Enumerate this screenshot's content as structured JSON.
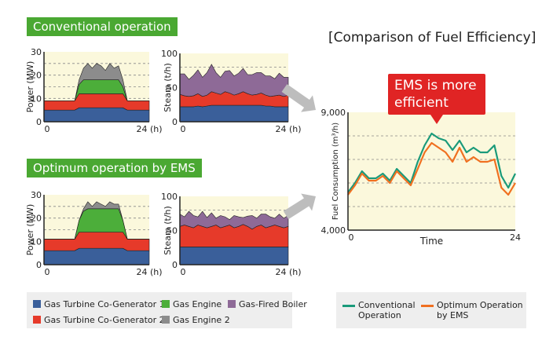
{
  "headers": {
    "conventional": "Conventional operation",
    "optimum": "Optimum operation by EMS"
  },
  "comparison": {
    "title": "[Comparison of Fuel Efficiency]",
    "callout": [
      "EMS is more",
      "efficient"
    ]
  },
  "colors": {
    "gt1": "#3a5f9a",
    "gt2": "#e63a2a",
    "engine": "#4cae3a",
    "engine2": "#8c8c8c",
    "boiler": "#8e6a97",
    "conventional": "#1a9a7a",
    "optimum": "#f07020",
    "plot_bg": "#fbf8dc"
  },
  "legend": {
    "gt1": "Gas Turbine Co-Generator 1",
    "gt2": "Gas Turbine Co-Generator 2",
    "engine": "Gas Engine",
    "engine2": "Gas Engine 2",
    "boiler": "Gas-Fired Boiler",
    "conventional": "Conventional Operation",
    "optimum": "Optimum Operation by EMS"
  },
  "chart_data": [
    {
      "id": "conv-power",
      "type": "area",
      "ylabel": "Power (MW)",
      "ylim": [
        0,
        30
      ],
      "yticks": [
        "30",
        "20",
        "10",
        "0"
      ],
      "xticks": [
        "0",
        "24 (h)"
      ],
      "xlim": [
        0,
        24
      ],
      "x": [
        0,
        1,
        2,
        3,
        4,
        5,
        6,
        7,
        8,
        9,
        10,
        11,
        12,
        13,
        14,
        15,
        16,
        17,
        18,
        19,
        20,
        21,
        22,
        23,
        24
      ],
      "series": [
        {
          "key": "gt1",
          "values": [
            5,
            5,
            5,
            5,
            5,
            5,
            5,
            5,
            6,
            6,
            6,
            6,
            6,
            6,
            6,
            6,
            6,
            6,
            6,
            5,
            5,
            5,
            5,
            5,
            5
          ]
        },
        {
          "key": "gt2",
          "values": [
            4,
            4,
            4,
            4,
            4,
            4,
            4,
            4,
            6,
            6,
            6,
            6,
            6,
            6,
            6,
            6,
            6,
            6,
            6,
            4,
            4,
            4,
            4,
            4,
            4
          ]
        },
        {
          "key": "engine",
          "values": [
            0,
            0,
            0,
            0,
            0,
            0,
            0,
            0,
            4,
            6,
            6,
            6,
            6,
            6,
            6,
            6,
            6,
            6,
            3,
            0,
            0,
            0,
            0,
            0,
            0
          ]
        },
        {
          "key": "engine2",
          "values": [
            0,
            0,
            0,
            0,
            0,
            0,
            0,
            0,
            2,
            5,
            7,
            5,
            7,
            6,
            4,
            7,
            5,
            6,
            3,
            0,
            0,
            0,
            0,
            0,
            0
          ]
        }
      ]
    },
    {
      "id": "conv-steam",
      "type": "area",
      "ylabel": "Steam (t/h)",
      "ylim": [
        0,
        100
      ],
      "yticks": [
        "100",
        "50",
        "0"
      ],
      "xticks": [
        "0",
        "24 (h)"
      ],
      "xlim": [
        0,
        24
      ],
      "x": [
        0,
        1,
        2,
        3,
        4,
        5,
        6,
        7,
        8,
        9,
        10,
        11,
        12,
        13,
        14,
        15,
        16,
        17,
        18,
        19,
        20,
        21,
        22,
        23,
        24
      ],
      "series": [
        {
          "key": "gt1",
          "values": [
            22,
            22,
            22,
            22,
            23,
            22,
            23,
            24,
            24,
            24,
            24,
            24,
            24,
            24,
            24,
            24,
            24,
            24,
            24,
            23,
            23,
            22,
            22,
            22,
            22
          ]
        },
        {
          "key": "gt2",
          "values": [
            18,
            16,
            15,
            16,
            18,
            15,
            16,
            20,
            18,
            16,
            20,
            18,
            15,
            17,
            20,
            17,
            15,
            16,
            18,
            16,
            14,
            16,
            17,
            15,
            17
          ]
        },
        {
          "key": "boiler",
          "values": [
            30,
            32,
            25,
            30,
            35,
            28,
            33,
            40,
            30,
            25,
            30,
            33,
            28,
            30,
            34,
            28,
            30,
            32,
            30,
            28,
            30,
            25,
            32,
            28,
            26
          ]
        }
      ]
    },
    {
      "id": "opt-power",
      "type": "area",
      "ylabel": "Power (MW)",
      "ylim": [
        0,
        30
      ],
      "yticks": [
        "30",
        "20",
        "10",
        "0"
      ],
      "xticks": [
        "0",
        "24 (h)"
      ],
      "xlim": [
        0,
        24
      ],
      "x": [
        0,
        1,
        2,
        3,
        4,
        5,
        6,
        7,
        8,
        9,
        10,
        11,
        12,
        13,
        14,
        15,
        16,
        17,
        18,
        19,
        20,
        21,
        22,
        23,
        24
      ],
      "series": [
        {
          "key": "gt1",
          "values": [
            6,
            6,
            6,
            6,
            6,
            6,
            6,
            6,
            7,
            7,
            7,
            7,
            7,
            7,
            7,
            7,
            7,
            7,
            7,
            6,
            6,
            6,
            6,
            6,
            6
          ]
        },
        {
          "key": "gt2",
          "values": [
            5,
            5,
            5,
            5,
            5,
            5,
            5,
            5,
            7,
            7,
            7,
            7,
            7,
            7,
            7,
            7,
            7,
            7,
            7,
            5,
            5,
            5,
            5,
            5,
            5
          ]
        },
        {
          "key": "engine",
          "values": [
            0,
            0,
            0,
            0,
            0,
            0,
            0,
            0,
            5,
            9,
            10,
            10,
            10,
            10,
            10,
            10,
            10,
            10,
            5,
            0,
            0,
            0,
            0,
            0,
            0
          ]
        },
        {
          "key": "engine2",
          "values": [
            0,
            0,
            0,
            0,
            0,
            0,
            0,
            0,
            0,
            1,
            3,
            1,
            3,
            2,
            1,
            3,
            2,
            2,
            0,
            0,
            0,
            0,
            0,
            0,
            0
          ]
        }
      ]
    },
    {
      "id": "opt-steam",
      "type": "area",
      "ylabel": "Steam (t/h)",
      "ylim": [
        0,
        100
      ],
      "yticks": [
        "100",
        "50",
        "0"
      ],
      "xticks": [
        "0",
        "24 (h)"
      ],
      "xlim": [
        0,
        24
      ],
      "x": [
        0,
        1,
        2,
        3,
        4,
        5,
        6,
        7,
        8,
        9,
        10,
        11,
        12,
        13,
        14,
        15,
        16,
        17,
        18,
        19,
        20,
        21,
        22,
        23,
        24
      ],
      "series": [
        {
          "key": "gt1",
          "values": [
            26,
            26,
            26,
            26,
            26,
            26,
            26,
            26,
            26,
            26,
            26,
            26,
            26,
            26,
            26,
            26,
            26,
            26,
            26,
            26,
            26,
            26,
            26,
            26,
            26
          ]
        },
        {
          "key": "gt2",
          "values": [
            30,
            32,
            30,
            28,
            32,
            30,
            28,
            30,
            32,
            28,
            30,
            32,
            28,
            30,
            33,
            30,
            26,
            30,
            32,
            28,
            30,
            32,
            30,
            28,
            30
          ]
        },
        {
          "key": "boiler",
          "values": [
            18,
            12,
            22,
            18,
            12,
            22,
            15,
            20,
            10,
            18,
            14,
            8,
            18,
            14,
            10,
            15,
            20,
            12,
            16,
            20,
            14,
            10,
            18,
            14,
            16
          ]
        }
      ]
    },
    {
      "id": "fuel",
      "type": "line",
      "ylabel": "Fuel Consumption (m³/h)",
      "xlabel": "Time",
      "ylim": [
        4000,
        9000
      ],
      "yticks": [
        "9,000",
        "4,000"
      ],
      "xticks": [
        "0",
        "24"
      ],
      "xlim": [
        0,
        24
      ],
      "x": [
        0,
        1,
        2,
        3,
        4,
        5,
        6,
        7,
        8,
        9,
        10,
        11,
        12,
        13,
        14,
        15,
        16,
        17,
        18,
        19,
        20,
        21,
        22,
        23,
        24
      ],
      "series": [
        {
          "key": "conventional",
          "values": [
            5600,
            6000,
            6500,
            6200,
            6200,
            6400,
            6100,
            6600,
            6300,
            6000,
            6900,
            7600,
            8100,
            7900,
            7800,
            7400,
            7800,
            7300,
            7500,
            7300,
            7300,
            7600,
            6300,
            5800,
            6400
          ]
        },
        {
          "key": "optimum",
          "values": [
            5500,
            5900,
            6400,
            6100,
            6100,
            6300,
            6000,
            6500,
            6200,
            5900,
            6600,
            7300,
            7700,
            7500,
            7300,
            6900,
            7500,
            6900,
            7100,
            6900,
            6900,
            7000,
            5800,
            5500,
            6000
          ]
        }
      ]
    }
  ]
}
